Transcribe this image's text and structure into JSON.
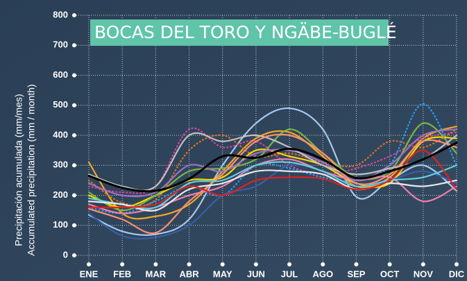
{
  "chart_data": {
    "type": "line",
    "title": "BOCAS DEL TORO Y NGÄBE-BUGLÉ",
    "ylabel": [
      "Precipitación acumulada (mm/mes)",
      "Accumulated precipitation (mm / month)"
    ],
    "categories": [
      "ENE",
      "FEB",
      "MAR",
      "ABR",
      "MAY",
      "JUN",
      "JUL",
      "AGO",
      "SEP",
      "OCT",
      "NOV",
      "DIC"
    ],
    "ylim": [
      0,
      800
    ],
    "yticks": [
      0,
      100,
      200,
      300,
      400,
      500,
      600,
      700,
      800
    ],
    "grid": true,
    "series": [
      {
        "color": "#a8c8f0",
        "values": [
          135,
          80,
          70,
          120,
          300,
          440,
          490,
          420,
          195,
          250,
          300,
          215
        ]
      },
      {
        "color": "#f5a623",
        "values": [
          310,
          140,
          130,
          170,
          280,
          390,
          410,
          330,
          230,
          260,
          390,
          430
        ]
      },
      {
        "color": "#e040a0",
        "dash": true,
        "values": [
          230,
          210,
          230,
          420,
          360,
          380,
          300,
          270,
          290,
          330,
          390,
          410
        ]
      },
      {
        "color": "#e07020",
        "dash": true,
        "values": [
          250,
          175,
          185,
          350,
          400,
          330,
          340,
          310,
          300,
          380,
          360,
          420
        ]
      },
      {
        "color": "#2a9df4",
        "dash": true,
        "values": [
          160,
          140,
          180,
          230,
          200,
          300,
          290,
          260,
          250,
          300,
          505,
          300
        ]
      },
      {
        "color": "#ffd700",
        "values": [
          200,
          160,
          200,
          250,
          260,
          350,
          330,
          300,
          240,
          240,
          380,
          390
        ]
      },
      {
        "color": "#7ab648",
        "values": [
          210,
          150,
          200,
          280,
          290,
          320,
          420,
          340,
          260,
          280,
          440,
          340
        ]
      },
      {
        "color": "#3a5ea8",
        "values": [
          140,
          65,
          60,
          100,
          200,
          230,
          300,
          280,
          230,
          250,
          280,
          240
        ]
      },
      {
        "color": "#f080b0",
        "values": [
          170,
          140,
          160,
          200,
          230,
          300,
          320,
          280,
          250,
          260,
          180,
          230
        ]
      },
      {
        "color": "#a070c0",
        "values": [
          240,
          200,
          210,
          300,
          280,
          340,
          350,
          310,
          250,
          300,
          400,
          420
        ]
      },
      {
        "color": "#c0c0c0",
        "values": [
          270,
          230,
          230,
          400,
          380,
          400,
          360,
          300,
          270,
          290,
          320,
          400
        ]
      },
      {
        "color": "#ff9070",
        "values": [
          155,
          120,
          75,
          180,
          270,
          380,
          400,
          340,
          240,
          270,
          380,
          360
        ]
      },
      {
        "color": "#60d0e0",
        "values": [
          190,
          170,
          160,
          240,
          250,
          300,
          310,
          280,
          230,
          250,
          260,
          300
        ]
      },
      {
        "color": "#e8e8e8",
        "values": [
          180,
          170,
          150,
          220,
          240,
          280,
          280,
          270,
          220,
          240,
          230,
          250
        ]
      },
      {
        "color": "#e02020",
        "values": [
          160,
          160,
          170,
          230,
          200,
          250,
          260,
          255,
          220,
          250,
          350,
          220
        ]
      },
      {
        "color": "#000000",
        "width": 3,
        "values": [
          265,
          225,
          215,
          255,
          330,
          325,
          355,
          320,
          258,
          280,
          320,
          375
        ]
      }
    ]
  }
}
